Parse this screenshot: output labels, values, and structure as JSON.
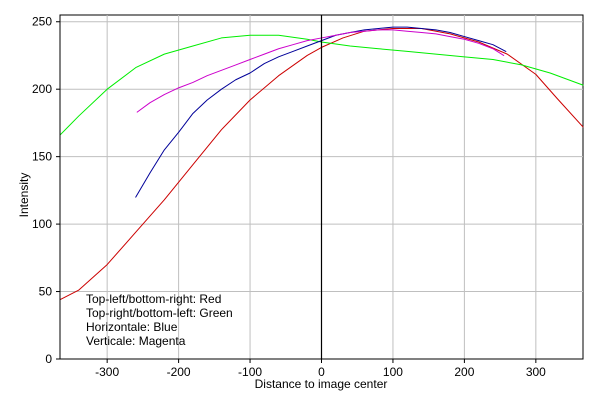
{
  "chart_data": {
    "type": "line",
    "title": "",
    "xlabel": "Distance to image center",
    "ylabel": "Intensity",
    "xlim": [
      -366,
      366
    ],
    "ylim": [
      0,
      255
    ],
    "xticks": [
      -300,
      -200,
      -100,
      0,
      100,
      200,
      300
    ],
    "yticks": [
      0,
      50,
      100,
      150,
      200,
      250
    ],
    "grid": true,
    "center_line_x": 0,
    "legend_placement": "bottom-left",
    "legend": [
      "Top-left/bottom-right: Red",
      "Top-right/bottom-left: Green",
      "Horizontale: Blue",
      "Verticale: Magenta"
    ],
    "series": [
      {
        "color": "#cc0000",
        "points": [
          [
            -366,
            44
          ],
          [
            -340,
            51
          ],
          [
            -300,
            70
          ],
          [
            -260,
            94
          ],
          [
            -220,
            118
          ],
          [
            -180,
            144
          ],
          [
            -140,
            170
          ],
          [
            -100,
            192
          ],
          [
            -60,
            210
          ],
          [
            -20,
            225
          ],
          [
            0,
            231
          ],
          [
            30,
            238
          ],
          [
            60,
            243
          ],
          [
            100,
            245
          ],
          [
            140,
            245
          ],
          [
            180,
            241
          ],
          [
            220,
            235
          ],
          [
            260,
            226
          ],
          [
            300,
            211
          ],
          [
            330,
            193
          ],
          [
            366,
            172
          ]
        ]
      },
      {
        "color": "#00ee00",
        "points": [
          [
            -366,
            166
          ],
          [
            -340,
            180
          ],
          [
            -300,
            200
          ],
          [
            -260,
            216
          ],
          [
            -220,
            226
          ],
          [
            -180,
            232
          ],
          [
            -140,
            238
          ],
          [
            -100,
            240
          ],
          [
            -60,
            240
          ],
          [
            -20,
            237
          ],
          [
            0,
            235
          ],
          [
            40,
            232
          ],
          [
            80,
            230
          ],
          [
            120,
            228
          ],
          [
            160,
            226
          ],
          [
            200,
            224
          ],
          [
            240,
            222
          ],
          [
            280,
            218
          ],
          [
            320,
            212
          ],
          [
            366,
            203
          ]
        ]
      },
      {
        "color": "#000099",
        "points": [
          [
            -260,
            120
          ],
          [
            -240,
            138
          ],
          [
            -220,
            155
          ],
          [
            -200,
            168
          ],
          [
            -180,
            182
          ],
          [
            -160,
            192
          ],
          [
            -140,
            200
          ],
          [
            -120,
            207
          ],
          [
            -100,
            212
          ],
          [
            -80,
            219
          ],
          [
            -60,
            224
          ],
          [
            -40,
            228
          ],
          [
            -20,
            232
          ],
          [
            0,
            236
          ],
          [
            20,
            240
          ],
          [
            40,
            242
          ],
          [
            60,
            244
          ],
          [
            80,
            245
          ],
          [
            100,
            246
          ],
          [
            120,
            246
          ],
          [
            140,
            245
          ],
          [
            160,
            244
          ],
          [
            180,
            242
          ],
          [
            200,
            239
          ],
          [
            220,
            236
          ],
          [
            240,
            233
          ],
          [
            258,
            228
          ]
        ]
      },
      {
        "color": "#cc00cc",
        "points": [
          [
            -258,
            183
          ],
          [
            -240,
            190
          ],
          [
            -220,
            196
          ],
          [
            -200,
            201
          ],
          [
            -180,
            205
          ],
          [
            -160,
            210
          ],
          [
            -140,
            214
          ],
          [
            -120,
            218
          ],
          [
            -100,
            222
          ],
          [
            -80,
            226
          ],
          [
            -60,
            230
          ],
          [
            -40,
            233
          ],
          [
            -20,
            236
          ],
          [
            0,
            238
          ],
          [
            20,
            240
          ],
          [
            40,
            242
          ],
          [
            60,
            243
          ],
          [
            80,
            244
          ],
          [
            100,
            244
          ],
          [
            120,
            243
          ],
          [
            140,
            242
          ],
          [
            160,
            241
          ],
          [
            180,
            239
          ],
          [
            200,
            237
          ],
          [
            220,
            234
          ],
          [
            240,
            230
          ],
          [
            255,
            225
          ]
        ]
      }
    ]
  }
}
